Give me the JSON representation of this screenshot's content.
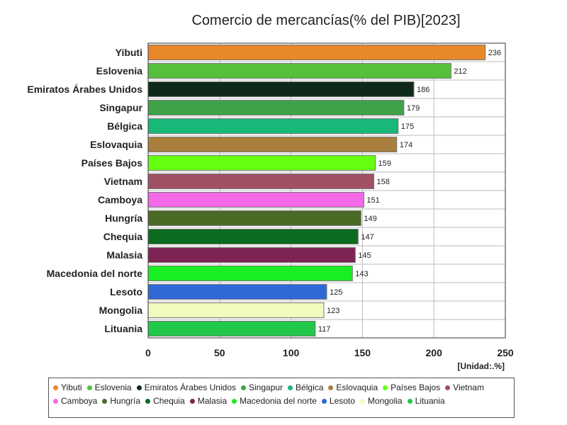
{
  "chart_data": {
    "type": "bar",
    "orientation": "horizontal",
    "title": "Comercio de mercancías(% del PIB)[2023]",
    "unit_label": "[Unidad:.%]",
    "xlim": [
      0,
      250
    ],
    "x_ticks": [
      0,
      50,
      100,
      150,
      200,
      250
    ],
    "grid": true,
    "legend_position": "bottom",
    "categories": [
      "Yibuti",
      "Eslovenia",
      "Emiratos Árabes Unidos",
      "Singapur",
      "Bélgica",
      "Eslovaquia",
      "Países Bajos",
      "Vietnam",
      "Camboya",
      "Hungría",
      "Chequia",
      "Malasia",
      "Macedonia del norte",
      "Lesoto",
      "Mongolia",
      "Lituania"
    ],
    "values": [
      236,
      212,
      186,
      179,
      175,
      174,
      159,
      158,
      151,
      149,
      147,
      145,
      143,
      125,
      123,
      117
    ],
    "colors": [
      "#e8862a",
      "#55c03c",
      "#10281a",
      "#3fa24a",
      "#18b879",
      "#a87f3c",
      "#66ff11",
      "#a05264",
      "#f56ae6",
      "#4b6a26",
      "#0b6b1e",
      "#7d2455",
      "#19ee25",
      "#2f69d6",
      "#f0fbbd",
      "#21c84a"
    ]
  }
}
